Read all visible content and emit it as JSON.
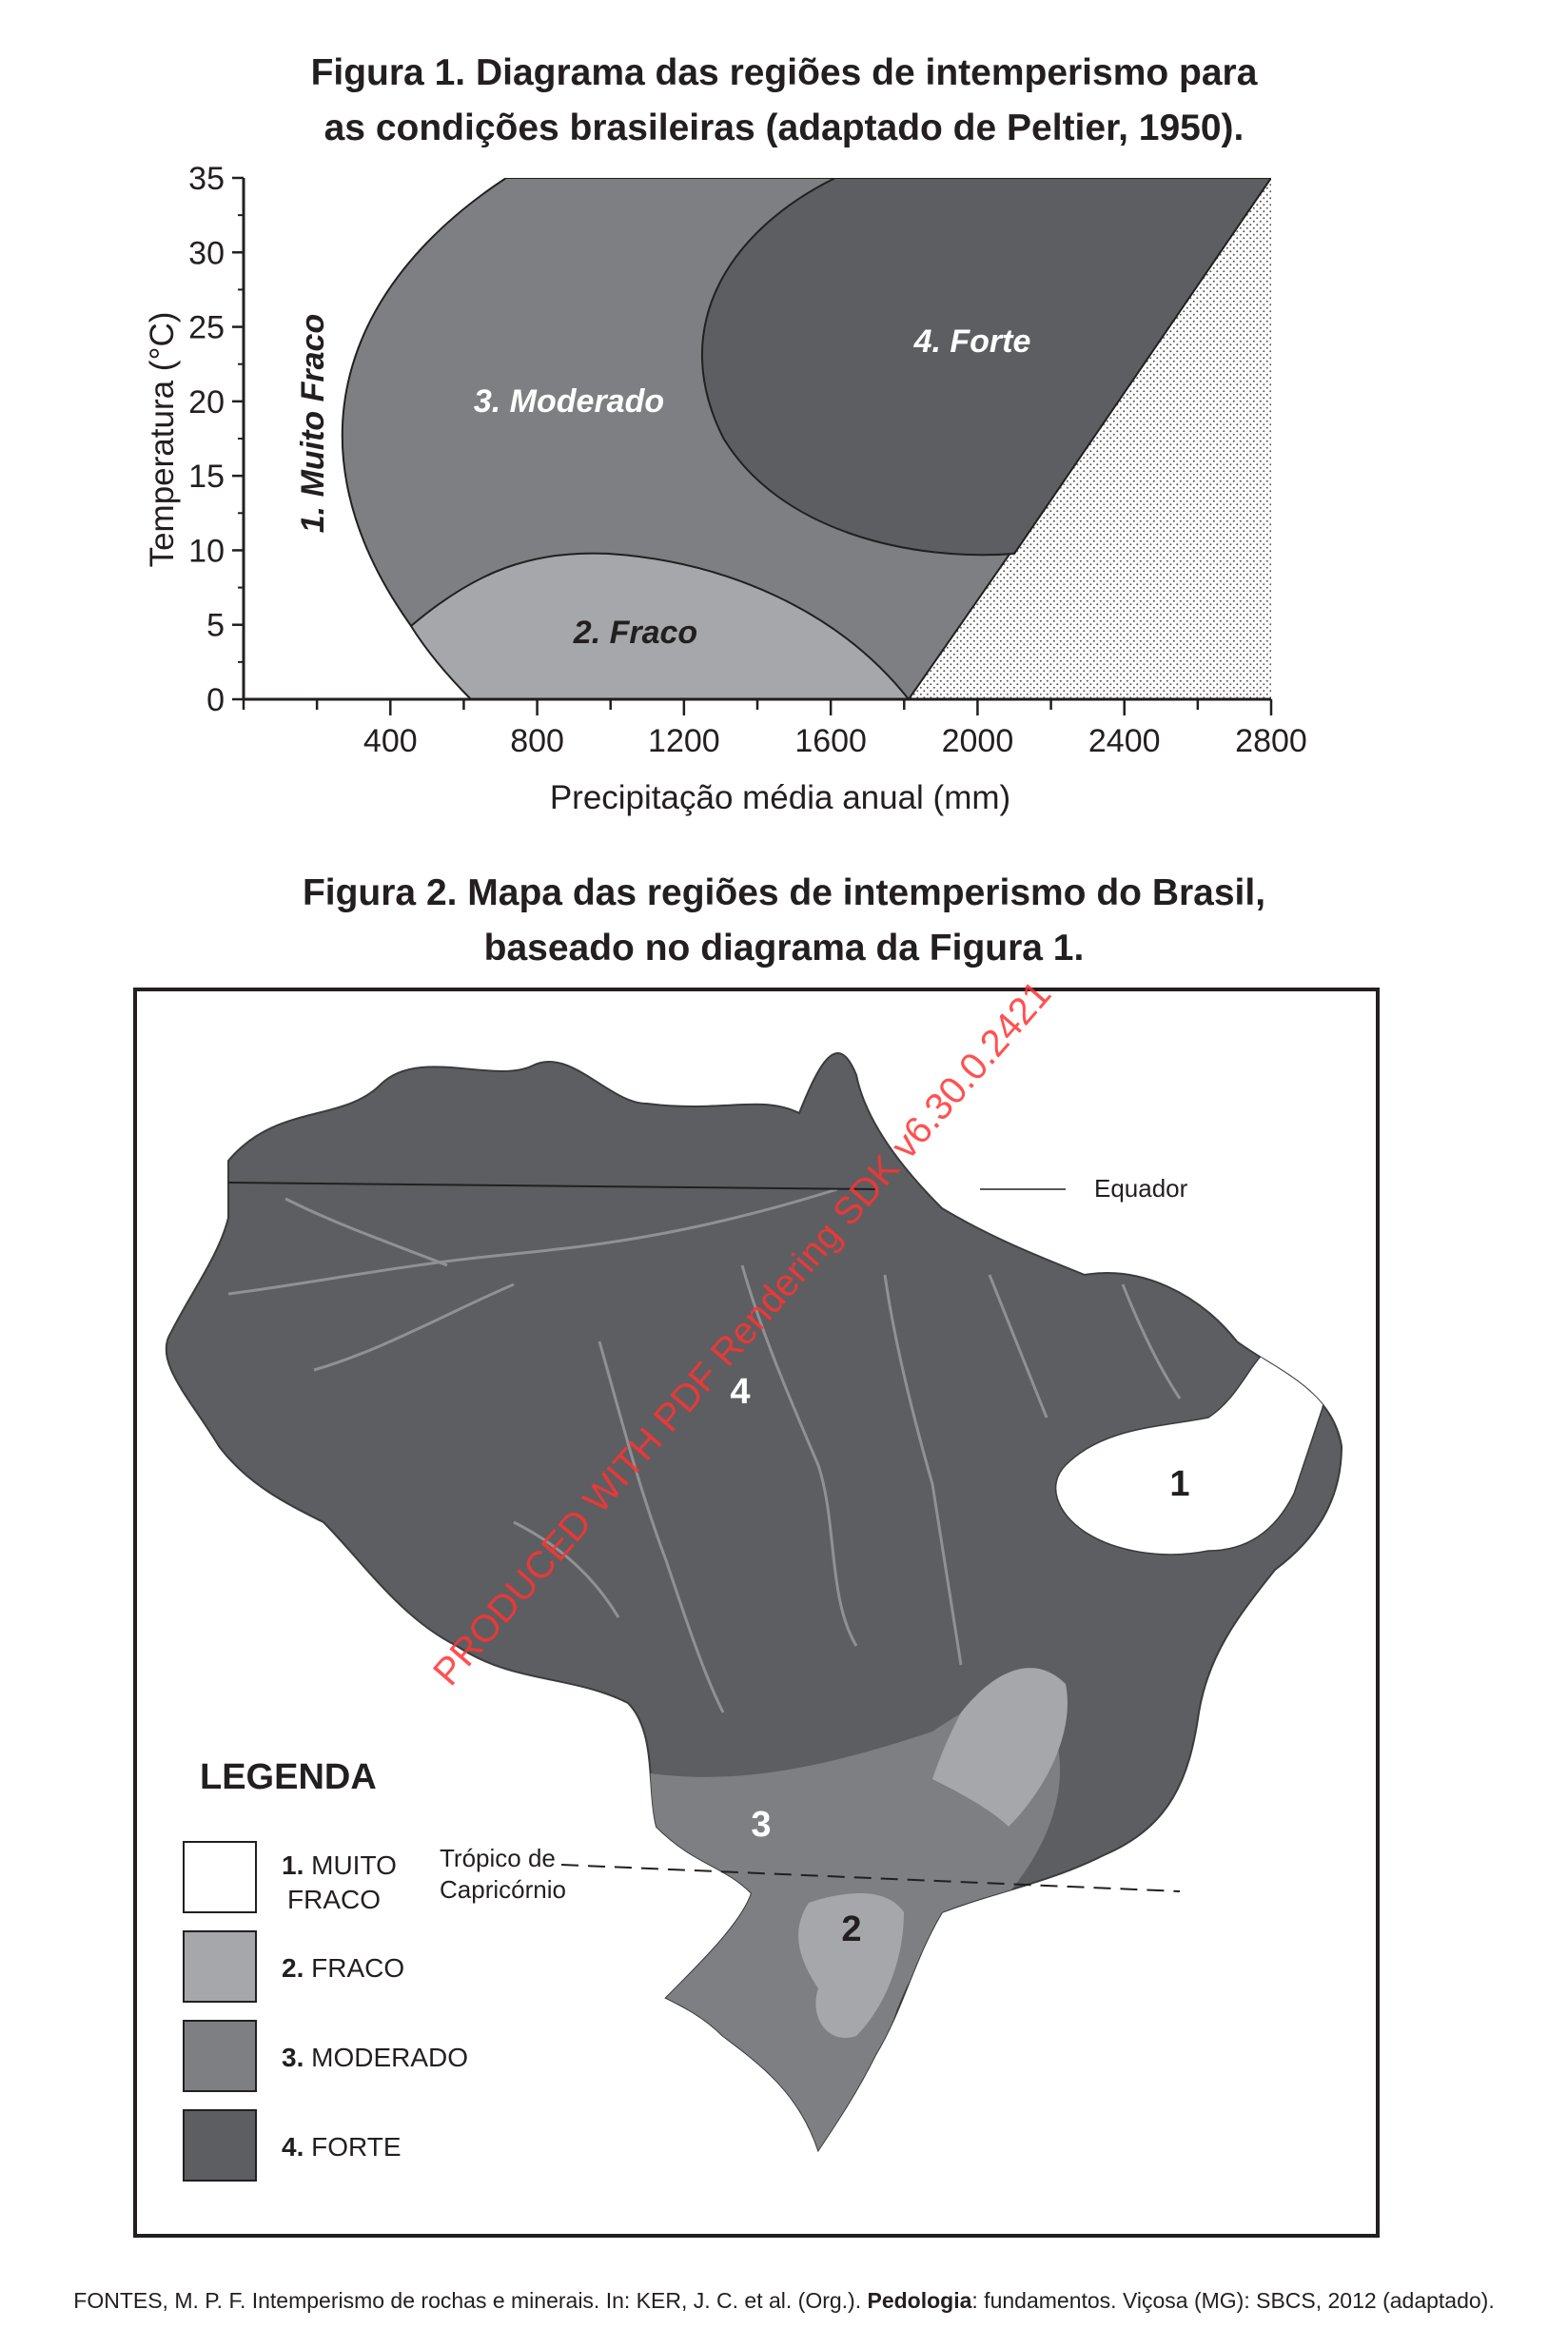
{
  "figure1": {
    "title_line1": "Figura 1. Diagrama das regiões de intemperismo para",
    "title_line2": "as condições brasileiras (adaptado de Peltier, 1950).",
    "ylabel": "Temperatura (°C)",
    "xlabel": "Precipitação média anual (mm)",
    "y_ticks": [
      "0",
      "5",
      "10",
      "15",
      "20",
      "25",
      "30",
      "35"
    ],
    "x_ticks": [
      "400",
      "800",
      "1200",
      "1600",
      "2000",
      "2400",
      "2800"
    ],
    "regions": {
      "muito_fraco": "1. Muito Fraco",
      "fraco": "2. Fraco",
      "moderado": "3. Moderado",
      "forte": "4. Forte"
    },
    "colors": {
      "fraco": "#a5a7aa",
      "moderado": "#7d7f82",
      "forte": "#5c5e61",
      "stipple": "#555555"
    }
  },
  "figure2": {
    "title_line1": "Figura 2. Mapa das regiões de intemperismo do Brasil,",
    "title_line2": "baseado no diagrama da Figura 1.",
    "equador": "Equador",
    "tropico_line1": "Trópico de",
    "tropico_line2": "Capricórnio",
    "region_numbers": [
      "1",
      "2",
      "3",
      "4"
    ],
    "legend": {
      "title": "LEGENDA",
      "items": [
        {
          "num": "1.",
          "label_line1": "MUITO",
          "label_line2": "FRACO",
          "color": "#ffffff"
        },
        {
          "num": "2.",
          "label_line1": "FRACO",
          "label_line2": "",
          "color": "#a5a7aa"
        },
        {
          "num": "3.",
          "label_line1": "MODERADO",
          "label_line2": "",
          "color": "#7d7f82"
        },
        {
          "num": "4.",
          "label_line1": "FORTE",
          "label_line2": "",
          "color": "#5c5e61"
        }
      ]
    }
  },
  "watermark": "PRODUCED WITH PDF Rendering SDK v6.30.0.2421",
  "source": {
    "part1": "FONTES, M. P. F. Intemperismo de rochas e minerais. In: KER, J. C. et al. (Org.). ",
    "bold": "Pedologia",
    "part2": ": fundamentos. Viçosa (MG): SBCS, 2012 (adaptado)."
  }
}
